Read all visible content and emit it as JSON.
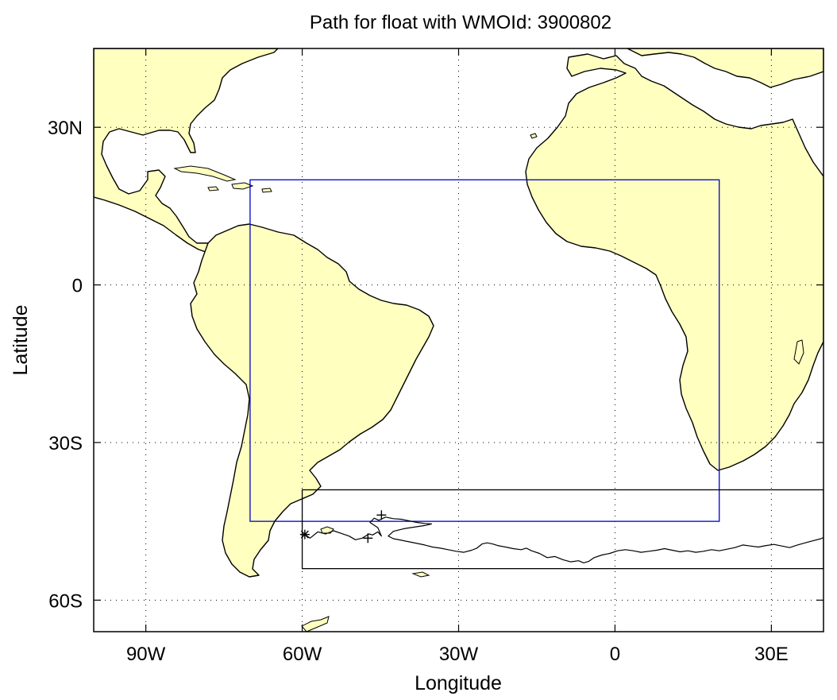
{
  "title": "Path for float with WMOId: 3900802",
  "xlabel": "Longitude",
  "ylabel": "Latitude",
  "map": {
    "projection": "equirectangular",
    "lon_range": [
      -100,
      40
    ],
    "lat_range": [
      -66,
      45
    ],
    "land_color": "#ffffc0",
    "grid": "dotted",
    "x_ticks": [
      {
        "lon": -90,
        "label": "90W"
      },
      {
        "lon": -60,
        "label": "60W"
      },
      {
        "lon": -30,
        "label": "30W"
      },
      {
        "lon": 0,
        "label": "0"
      },
      {
        "lon": 30,
        "label": "30E"
      }
    ],
    "y_ticks": [
      {
        "lat": 30,
        "label": "30N"
      },
      {
        "lat": 0,
        "label": "0"
      },
      {
        "lat": -30,
        "label": "30S"
      },
      {
        "lat": -60,
        "label": "60S"
      }
    ],
    "region_boxes": [
      {
        "name": "blue-region-box",
        "color": "#0000cc",
        "lon": [
          -70,
          20
        ],
        "lat": [
          -45,
          20
        ]
      },
      {
        "name": "black-region-box",
        "color": "#000000",
        "lon": [
          -60,
          40
        ],
        "lat": [
          -54,
          -39
        ]
      }
    ],
    "track": [
      [
        -59.5,
        -47.5
      ],
      [
        -58.5,
        -48.2
      ],
      [
        -57,
        -47
      ],
      [
        -55.5,
        -47.4
      ],
      [
        -54,
        -46.8
      ],
      [
        -52.5,
        -47.3
      ],
      [
        -51,
        -47.8
      ],
      [
        -49.8,
        -48.5
      ],
      [
        -48.5,
        -48.2
      ],
      [
        -47.2,
        -47.4
      ],
      [
        -46.5,
        -47.6
      ],
      [
        -45.5,
        -47
      ],
      [
        -44.8,
        -47.8
      ],
      [
        -45.5,
        -46.2
      ],
      [
        -47,
        -45.2
      ],
      [
        -46.2,
        -44.4
      ],
      [
        -45.3,
        -44.8
      ],
      [
        -44,
        -44.2
      ],
      [
        -42.5,
        -44.5
      ],
      [
        -41,
        -44.6
      ],
      [
        -39.5,
        -44.9
      ],
      [
        -38,
        -45.2
      ],
      [
        -36.5,
        -45.4
      ],
      [
        -35.2,
        -45.5
      ],
      [
        -36.5,
        -45.8
      ],
      [
        -38.5,
        -46.1
      ],
      [
        -40.5,
        -46.4
      ],
      [
        -42.5,
        -46.9
      ],
      [
        -43.5,
        -47.8
      ],
      [
        -42.5,
        -48.3
      ],
      [
        -41,
        -48.6
      ],
      [
        -39.5,
        -48.9
      ],
      [
        -38,
        -49.2
      ],
      [
        -36.5,
        -49.5
      ],
      [
        -35,
        -49.9
      ],
      [
        -33.5,
        -50.1
      ],
      [
        -32,
        -50.4
      ],
      [
        -30.5,
        -50.7
      ],
      [
        -29,
        -50.9
      ],
      [
        -27.5,
        -50.5
      ],
      [
        -26.5,
        -50.1
      ],
      [
        -25.5,
        -49.3
      ],
      [
        -24.5,
        -49.1
      ],
      [
        -23.5,
        -49.3
      ],
      [
        -22.5,
        -49.6
      ],
      [
        -21,
        -49.9
      ],
      [
        -19.5,
        -50.2
      ],
      [
        -18,
        -50.4
      ],
      [
        -17,
        -50.1
      ],
      [
        -16,
        -50.6
      ],
      [
        -14.5,
        -51.1
      ],
      [
        -13,
        -51.9
      ],
      [
        -11.5,
        -51.7
      ],
      [
        -10,
        -52.3
      ],
      [
        -8.5,
        -52.7
      ],
      [
        -7,
        -52.5
      ],
      [
        -6,
        -52.9
      ],
      [
        -5,
        -52.6
      ],
      [
        -4,
        -51.9
      ],
      [
        -2.5,
        -51.4
      ],
      [
        -1,
        -51.1
      ],
      [
        0.5,
        -50.6
      ],
      [
        2,
        -50.4
      ],
      [
        3.5,
        -50.6
      ],
      [
        5,
        -50.9
      ],
      [
        6.5,
        -50.7
      ],
      [
        8,
        -50.5
      ],
      [
        9.5,
        -50.2
      ],
      [
        11,
        -50.5
      ],
      [
        12.5,
        -50.8
      ],
      [
        14,
        -50.6
      ],
      [
        15.5,
        -50.9
      ],
      [
        17,
        -50.7
      ],
      [
        18.5,
        -50.4
      ],
      [
        20,
        -50.6
      ],
      [
        21.5,
        -50.3
      ],
      [
        23,
        -50.0
      ],
      [
        24.5,
        -49.5
      ],
      [
        26,
        -49.7
      ],
      [
        27.5,
        -49.9
      ],
      [
        29,
        -49.6
      ],
      [
        30.5,
        -49.4
      ],
      [
        32,
        -49.7
      ],
      [
        33.5,
        -50.0
      ],
      [
        35,
        -49.5
      ],
      [
        36.5,
        -49.1
      ],
      [
        38,
        -48.7
      ],
      [
        39.5,
        -48.3
      ],
      [
        40,
        -48.1
      ]
    ],
    "track_start": [
      -59.5,
      -47.5
    ],
    "track_markers": [
      [
        -44.8,
        -43.8
      ],
      [
        -47.4,
        -48.2
      ]
    ]
  }
}
